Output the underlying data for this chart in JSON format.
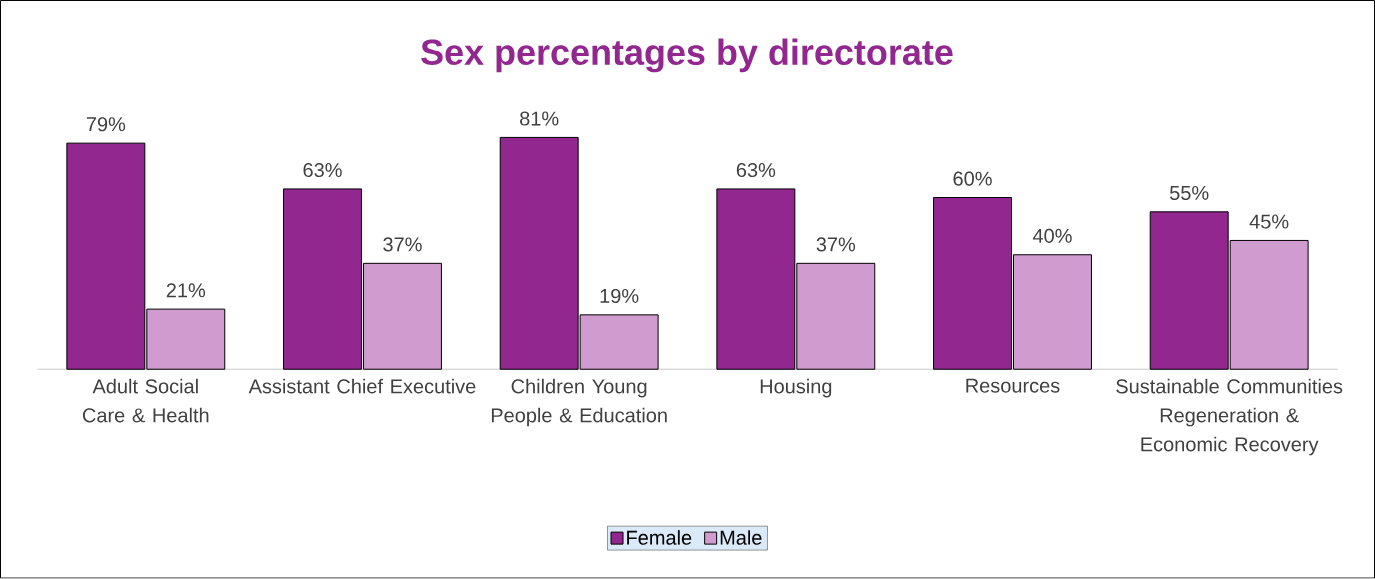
{
  "chart_data": {
    "type": "bar",
    "title": "Sex percentages by directorate",
    "categories": [
      "Adult Social Care & Health",
      "Assistant Chief Executive",
      "Children Young People & Education",
      "Housing",
      "Resources",
      "Sustainable Communities Regeneration & Economic Recovery"
    ],
    "series": [
      {
        "name": "Female",
        "color": "#92278f",
        "values": [
          79,
          63,
          81,
          63,
          60,
          55
        ],
        "value_labels": [
          "79%",
          "63%",
          "81%",
          "63%",
          "60%",
          "55%"
        ]
      },
      {
        "name": "Male",
        "color": "#d09bcf",
        "values": [
          21,
          37,
          19,
          37,
          40,
          45
        ],
        "value_labels": [
          "21%",
          "37%",
          "19%",
          "37%",
          "40%",
          "45%"
        ]
      }
    ],
    "legend": "bottom"
  }
}
